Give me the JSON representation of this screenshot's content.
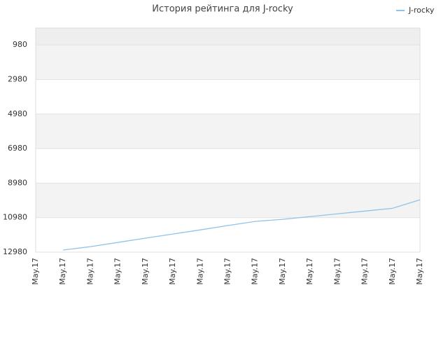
{
  "chart_data": {
    "type": "line",
    "title": "История рейтинга для J-rocky",
    "categories": [
      "May.17",
      "May.17",
      "May.17",
      "May.17",
      "May.17",
      "May.17",
      "May.17",
      "May.17",
      "May.17",
      "May.17",
      "May.17",
      "May.17",
      "May.17",
      "May.17",
      "May.17"
    ],
    "series": [
      {
        "name": "J-rocky",
        "color": "#8ec3ea",
        "values": [
          null,
          12860,
          12660,
          12415,
          12170,
          11930,
          11690,
          11440,
          11200,
          11080,
          10920,
          10760,
          10600,
          10440,
          9950
        ]
      }
    ],
    "ylim": [
      12980,
      0
    ],
    "yticks": [
      980,
      2980,
      4980,
      6980,
      8980,
      10980,
      12980
    ],
    "grid": true,
    "legend": "top-right"
  }
}
